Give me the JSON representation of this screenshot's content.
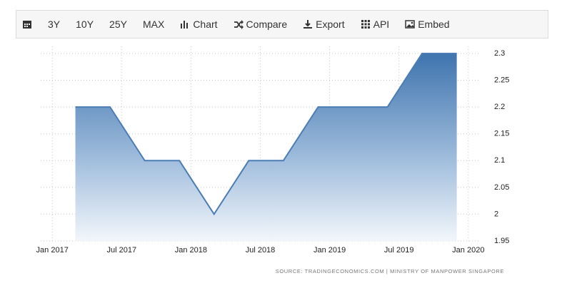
{
  "toolbar": {
    "buttons": [
      "3Y",
      "10Y",
      "25Y",
      "MAX",
      "Chart",
      "Compare",
      "Export",
      "API",
      "Embed"
    ]
  },
  "chart_data": {
    "type": "area",
    "x": [
      "2017-03",
      "2017-06",
      "2017-09",
      "2017-12",
      "2018-03",
      "2018-06",
      "2018-09",
      "2018-12",
      "2019-03",
      "2019-06",
      "2019-09",
      "2019-12"
    ],
    "values": [
      2.2,
      2.2,
      2.1,
      2.1,
      2.0,
      2.1,
      2.1,
      2.2,
      2.2,
      2.2,
      2.3,
      2.3
    ],
    "color": "#4a7db5",
    "xlim": [
      "2016-12",
      "2020-02"
    ],
    "xticks": [
      {
        "value": "2017-01",
        "label": "Jan 2017"
      },
      {
        "value": "2017-07",
        "label": "Jul 2017"
      },
      {
        "value": "2018-01",
        "label": "Jan 2018"
      },
      {
        "value": "2018-07",
        "label": "Jul 2018"
      },
      {
        "value": "2019-01",
        "label": "Jan 2019"
      },
      {
        "value": "2019-07",
        "label": "Jul 2019"
      },
      {
        "value": "2020-01",
        "label": "Jan 2020"
      }
    ],
    "ylim": [
      1.95,
      2.3
    ],
    "yticks": [
      1.95,
      2,
      2.05,
      2.1,
      2.15,
      2.2,
      2.25,
      2.3
    ],
    "grid": true,
    "source": "SOURCE: TRADINGECONOMICS.COM | MINISTRY OF MANPOWER SINGAPORE"
  }
}
